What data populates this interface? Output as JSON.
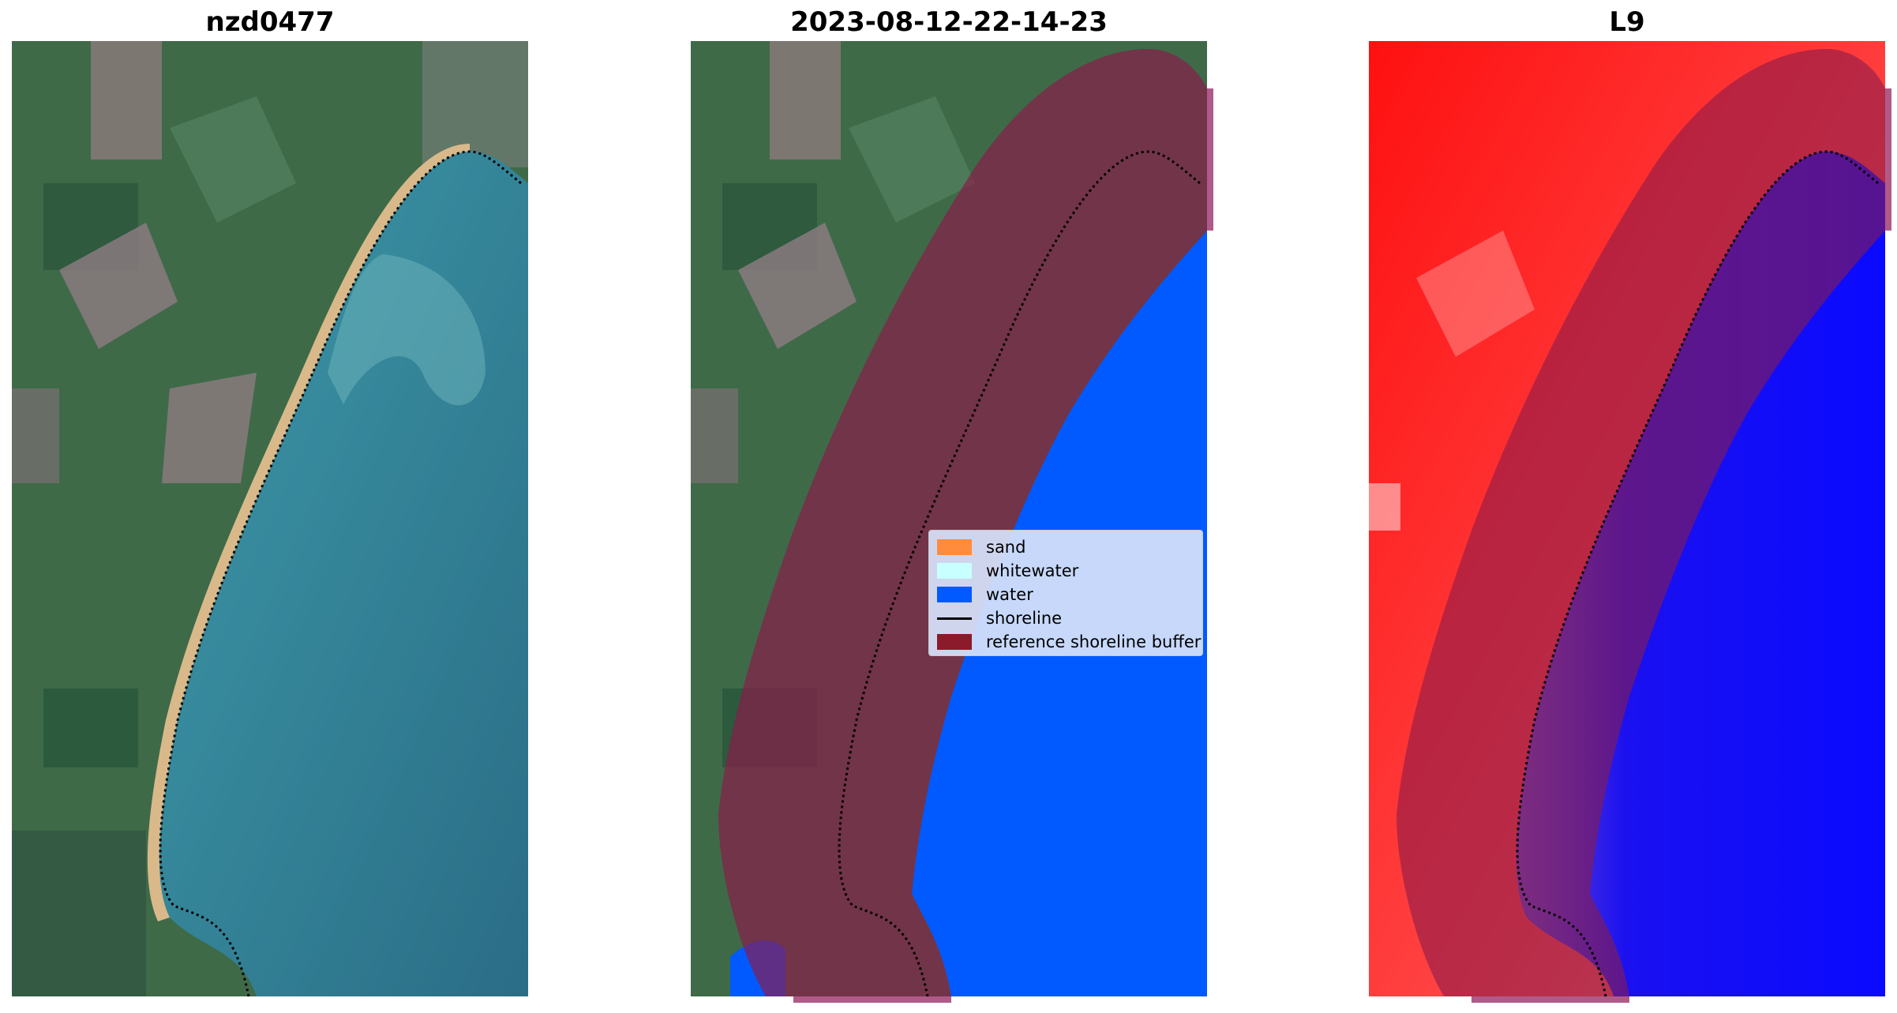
{
  "panels": [
    {
      "title": "nzd0477"
    },
    {
      "title": "2023-08-12-22-14-23"
    },
    {
      "title": "L9"
    }
  ],
  "legend": {
    "items": [
      {
        "label": "sand",
        "color": "#ff8c3c"
      },
      {
        "label": "whitewater",
        "color": "#c8ffff"
      },
      {
        "label": "water",
        "color": "#005aff"
      },
      {
        "label": "shoreline",
        "color": "#000000"
      },
      {
        "label": "reference shoreline buffer",
        "color": "#8b1a2a"
      }
    ]
  },
  "colors": {
    "land": "#3f6a48",
    "sea": "#2f7f93",
    "sand": "#d9b98a",
    "classified_water": "#005aff",
    "buffer_overlay": "#8b1a4a",
    "index_land": "#ff1a1a",
    "index_water": "#0a0aff"
  }
}
